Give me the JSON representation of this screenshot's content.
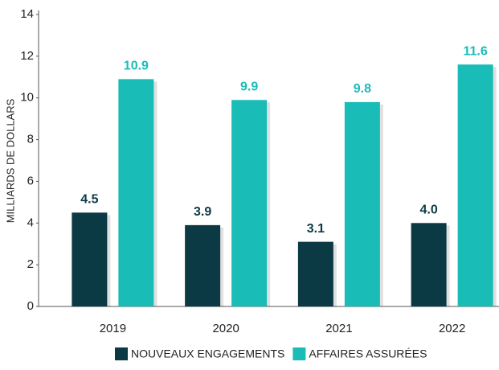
{
  "chart_data": {
    "type": "bar",
    "y_label": "MILLIARDS DE DOLLARS",
    "categories": [
      "2019",
      "2020",
      "2021",
      "2022"
    ],
    "series": [
      {
        "name": "NOUVEAUX ENGAGEMENTS",
        "color": "#0b3a44",
        "values": [
          4.5,
          3.9,
          3.1,
          4.0
        ],
        "value_labels": [
          "4.5",
          "3.9",
          "3.1",
          "4.0"
        ]
      },
      {
        "name": "AFFAIRES ASSURÉES",
        "color": "#1abcb8",
        "values": [
          10.9,
          9.9,
          9.8,
          11.6
        ],
        "value_labels": [
          "10.9",
          "9.9",
          "9.8",
          "11.6"
        ]
      }
    ],
    "ylim": [
      0,
      14
    ],
    "yticks": [
      0,
      2,
      4,
      6,
      8,
      10,
      12,
      14
    ],
    "grid": false,
    "legend": "bottom"
  }
}
